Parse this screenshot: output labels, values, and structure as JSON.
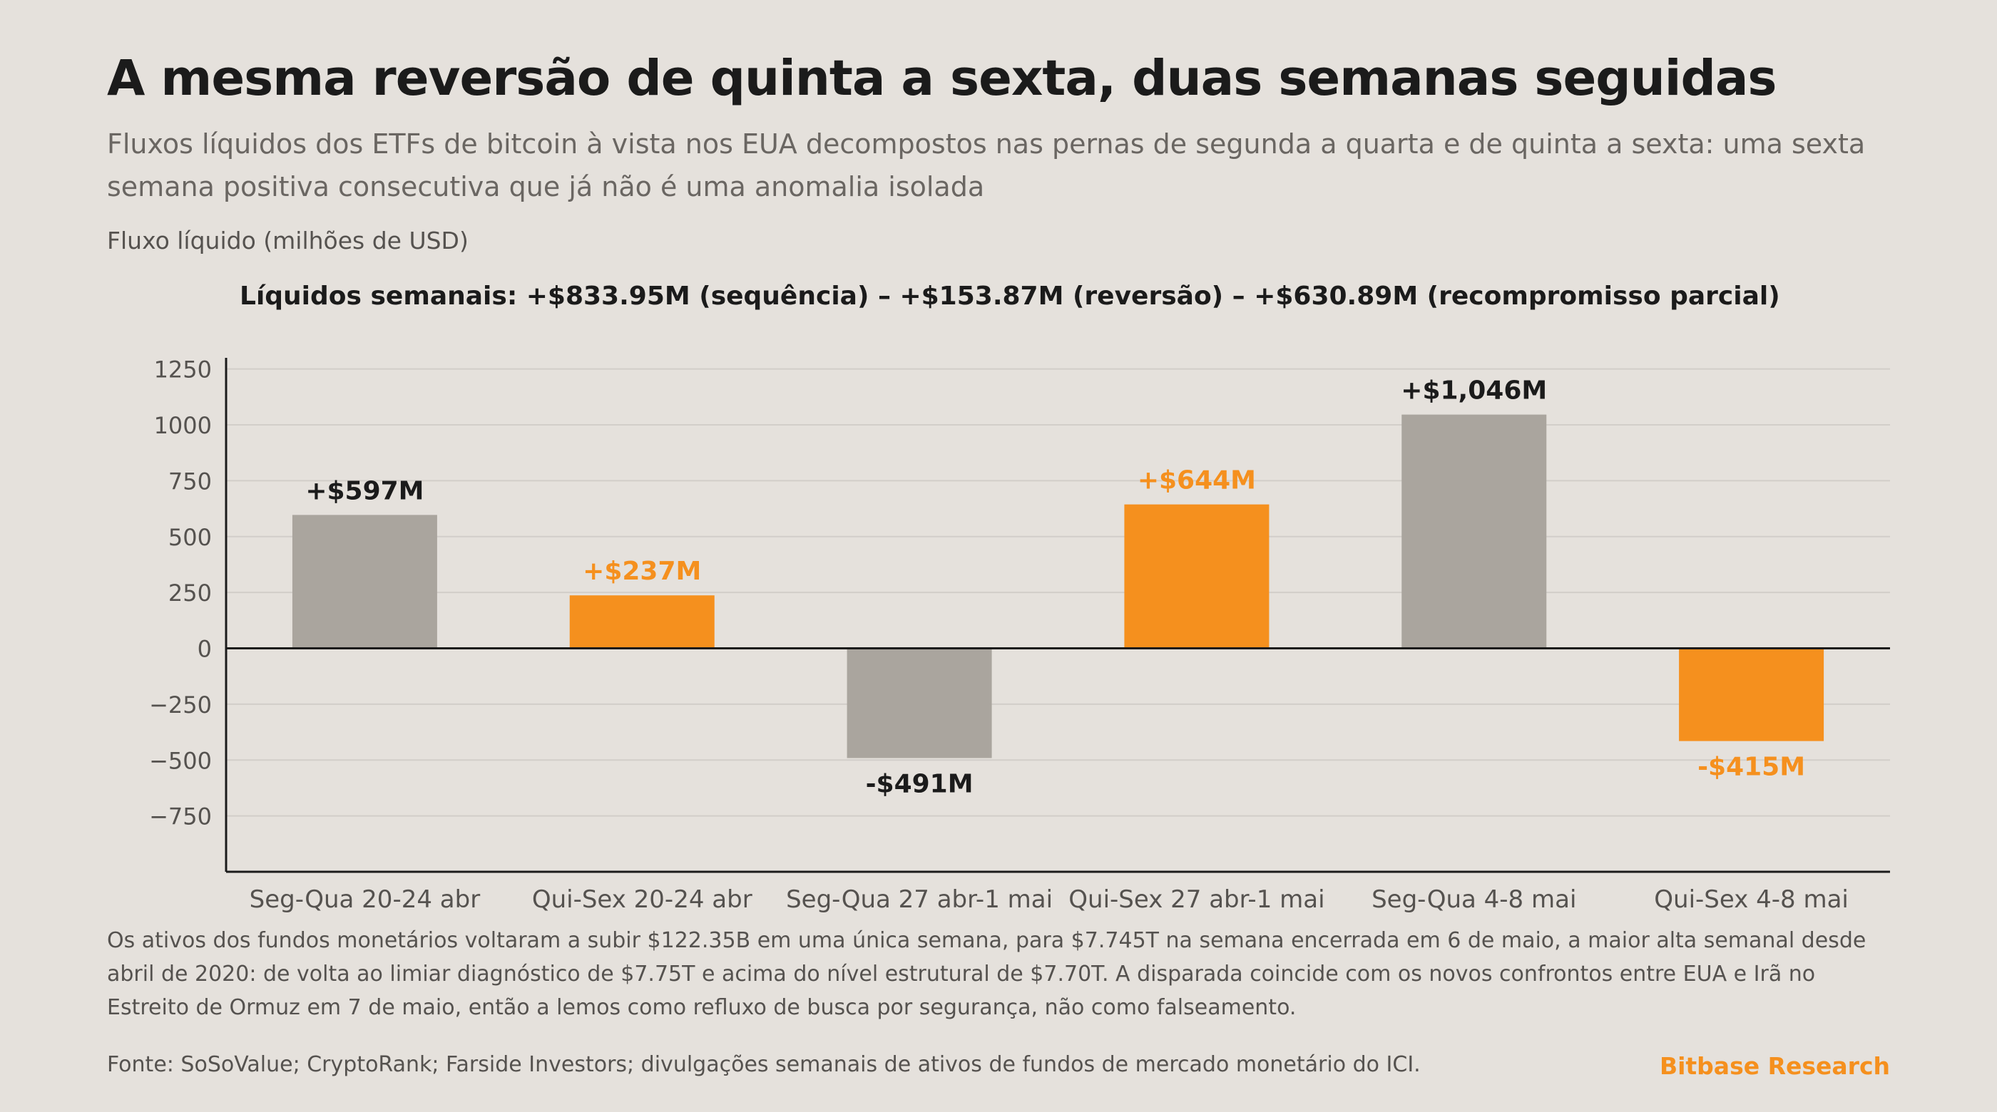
{
  "title": "A mesma reversão de quinta a sexta, duas semanas seguidas",
  "subtitle": "Fluxos líquidos dos ETFs de bitcoin à vista nos EUA decompostos nas pernas de segunda a quarta e de quinta a sexta: uma sexta semana positiva consecutiva que já não é uma anomalia isolada",
  "annotation": "Líquidos semanais: +$833.95M (sequência) – +$153.87M (reversão) – +$630.89M (recompromisso parcial)",
  "footnote": "Os ativos dos fundos monetários voltaram a subir $122.35B em uma única semana, para $7.745T na semana encerrada em 6 de maio, a maior alta semanal desde abril de 2020: de volta ao limiar diagnóstico de $7.75T e acima do nível estrutural de $7.70T. A disparada coincide com os novos confrontos entre EUA e Irã no Estreito de Ormuz em 7 de maio, então a lemos como refluxo de busca por segurança, não como falseamento.",
  "source": "Fonte: SoSoValue; CryptoRank; Farside Investors; divulgações semanais de ativos de fundos de mercado monetário do ICI.",
  "brand": "Bitbase Research",
  "colors": {
    "mon_wed": "#aaa59e",
    "thu_fri": "#f5901e",
    "label_dark": "#1b1b1b",
    "grid": "#d2cec9",
    "axis": "#1b1b1b",
    "brand": "#f5901e"
  },
  "chart_data": {
    "type": "bar",
    "ylabel": "Fluxo líquido (milhões de USD)",
    "ylim": [
      -1000,
      1300
    ],
    "yticks": [
      1250,
      1000,
      750,
      500,
      250,
      0,
      -250,
      -500,
      -750
    ],
    "grid": true,
    "categories": [
      "Seg-Qua 20-24 abr",
      "Qui-Sex 20-24 abr",
      "Seg-Qua 27 abr-1 mai",
      "Qui-Sex 27 abr-1 mai",
      "Seg-Qua 4-8 mai",
      "Qui-Sex 4-8 mai"
    ],
    "values": [
      597,
      237,
      -491,
      644,
      1046,
      -415
    ],
    "data_labels": [
      "+$597M",
      "+$237M",
      "-$491M",
      "+$644M",
      "+$1,046M",
      "-$415M"
    ],
    "bar_groups": [
      "mon_wed",
      "thu_fri",
      "mon_wed",
      "thu_fri",
      "mon_wed",
      "thu_fri"
    ]
  }
}
